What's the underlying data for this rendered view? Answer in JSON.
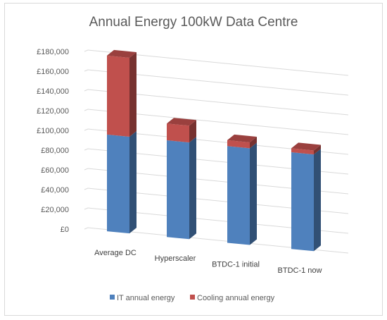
{
  "chart_data": {
    "type": "bar",
    "stacked": true,
    "three_d": true,
    "title": "Annual Energy 100kW Data Centre",
    "categories": [
      "Average DC",
      "Hyperscaler",
      "BTDC-1 initial",
      "BTDC-1 now"
    ],
    "series": [
      {
        "name": "IT annual energy",
        "values": [
          98000,
          98000,
          98000,
          98000
        ],
        "color": "#4f81bd"
      },
      {
        "name": "Cooling annual energy",
        "values": [
          80000,
          17000,
          6000,
          4000
        ],
        "color": "#c0504d"
      }
    ],
    "y_tick_labels": [
      "£0",
      "£20,000",
      "£40,000",
      "£60,000",
      "£80,000",
      "£100,000",
      "£120,000",
      "£140,000",
      "£160,000",
      "£180,000"
    ],
    "ylim": [
      0,
      180000
    ],
    "grid": true,
    "legend_position": "bottom"
  }
}
